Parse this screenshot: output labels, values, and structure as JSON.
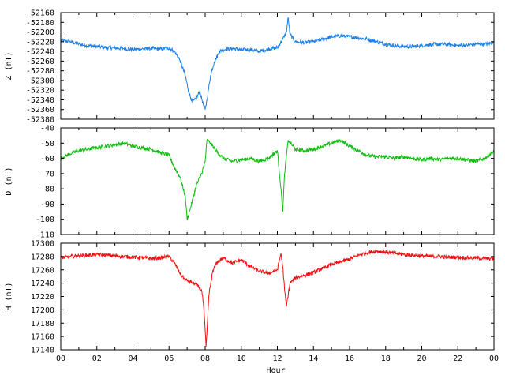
{
  "chart_data": [
    {
      "type": "line",
      "ylabel": "Z (nT)",
      "ylim": [
        -52380,
        -52160
      ],
      "yticks": [
        -52160,
        -52180,
        -52200,
        -52220,
        -52240,
        -52260,
        -52280,
        -52300,
        -52320,
        -52340,
        -52360,
        -52380
      ],
      "xlim": [
        0,
        24
      ],
      "color": "#1a7fe6",
      "series": [
        {
          "x": [
            0,
            0.5,
            1,
            1.5,
            2,
            2.5,
            3,
            3.5,
            4,
            4.5,
            5,
            5.5,
            6,
            6.3,
            6.6,
            6.9,
            7.1,
            7.3,
            7.5,
            7.7,
            7.9,
            8.0,
            8.1,
            8.3,
            8.5,
            8.8,
            9.0,
            9.5,
            10,
            10.5,
            11,
            11.5,
            12,
            12.3,
            12.5,
            12.6,
            12.7,
            13,
            13.5,
            14,
            14.5,
            15,
            15.5,
            16,
            16.5,
            17,
            17.5,
            18,
            18.5,
            19,
            19.5,
            20,
            20.5,
            21,
            21.5,
            22,
            22.5,
            23,
            23.5,
            24
          ],
          "values": [
            -52218,
            -52220,
            -52225,
            -52228,
            -52230,
            -52232,
            -52233,
            -52234,
            -52236,
            -52235,
            -52234,
            -52235,
            -52233,
            -52240,
            -52258,
            -52290,
            -52325,
            -52345,
            -52338,
            -52322,
            -52350,
            -52360,
            -52340,
            -52290,
            -52262,
            -52240,
            -52236,
            -52234,
            -52237,
            -52236,
            -52240,
            -52235,
            -52232,
            -52215,
            -52200,
            -52170,
            -52205,
            -52220,
            -52222,
            -52220,
            -52215,
            -52210,
            -52208,
            -52210,
            -52212,
            -52215,
            -52220,
            -52225,
            -52228,
            -52230,
            -52230,
            -52228,
            -52226,
            -52225,
            -52226,
            -52228,
            -52227,
            -52225,
            -52225,
            -52222
          ]
        }
      ]
    },
    {
      "type": "line",
      "ylabel": "D (nT)",
      "ylim": [
        -110,
        -40
      ],
      "yticks": [
        -40,
        -50,
        -60,
        -70,
        -80,
        -90,
        -100,
        -110
      ],
      "xlim": [
        0,
        24
      ],
      "color": "#11bb11",
      "series": [
        {
          "x": [
            0,
            0.5,
            1,
            1.5,
            2,
            2.5,
            3,
            3.5,
            4,
            4.5,
            5,
            5.5,
            6,
            6.3,
            6.6,
            6.9,
            7.0,
            7.2,
            7.5,
            7.8,
            8.0,
            8.1,
            8.3,
            8.6,
            9.0,
            9.5,
            10,
            10.5,
            11,
            11.5,
            12,
            12.2,
            12.3,
            12.4,
            12.6,
            13,
            13.5,
            14,
            14.5,
            15,
            15.5,
            16,
            16.5,
            17,
            17.5,
            18,
            18.5,
            19,
            19.5,
            20,
            20.5,
            21,
            21.5,
            22,
            22.5,
            23,
            23.5,
            24
          ],
          "values": [
            -60,
            -57,
            -55,
            -54,
            -53,
            -52,
            -51,
            -50,
            -52,
            -53,
            -54,
            -56,
            -58,
            -66,
            -72,
            -85,
            -100,
            -92,
            -78,
            -70,
            -62,
            -48,
            -50,
            -55,
            -60,
            -62,
            -61,
            -60,
            -62,
            -60,
            -55,
            -80,
            -95,
            -70,
            -48,
            -54,
            -55,
            -54,
            -52,
            -50,
            -48,
            -52,
            -55,
            -58,
            -59,
            -59,
            -60,
            -59,
            -60,
            -61,
            -60,
            -61,
            -60,
            -60,
            -61,
            -62,
            -60,
            -55
          ]
        }
      ]
    },
    {
      "type": "line",
      "ylabel": "H (nT)",
      "ylim": [
        17140,
        17300
      ],
      "yticks": [
        17300,
        17280,
        17260,
        17240,
        17220,
        17200,
        17180,
        17160,
        17140
      ],
      "xlim": [
        0,
        24
      ],
      "xticks": [
        "00",
        "02",
        "04",
        "06",
        "08",
        "10",
        "12",
        "14",
        "16",
        "18",
        "20",
        "22",
        "00"
      ],
      "xlabel": "Hour",
      "color": "#ee1111",
      "series": [
        {
          "x": [
            0,
            0.5,
            1,
            1.5,
            2,
            2.5,
            3,
            3.5,
            4,
            4.5,
            5,
            5.5,
            6,
            6.3,
            6.6,
            6.9,
            7.2,
            7.5,
            7.8,
            7.9,
            8.0,
            8.05,
            8.1,
            8.2,
            8.4,
            8.6,
            9,
            9.5,
            10,
            10.5,
            11,
            11.5,
            12,
            12.2,
            12.3,
            12.4,
            12.5,
            12.7,
            13,
            13.5,
            14,
            14.5,
            15,
            15.5,
            16,
            16.5,
            17,
            17.5,
            18,
            18.5,
            19,
            19.5,
            20,
            20.5,
            21,
            21.5,
            22,
            22.5,
            23,
            23.5,
            24
          ],
          "values": [
            17278,
            17280,
            17281,
            17282,
            17283,
            17282,
            17281,
            17280,
            17279,
            17278,
            17277,
            17278,
            17280,
            17270,
            17255,
            17245,
            17242,
            17238,
            17230,
            17210,
            17170,
            17145,
            17165,
            17220,
            17255,
            17270,
            17278,
            17270,
            17275,
            17265,
            17258,
            17255,
            17260,
            17285,
            17265,
            17230,
            17205,
            17240,
            17248,
            17252,
            17256,
            17262,
            17268,
            17272,
            17276,
            17282,
            17286,
            17288,
            17287,
            17285,
            17283,
            17282,
            17281,
            17280,
            17280,
            17279,
            17279,
            17278,
            17278,
            17277,
            17277
          ]
        }
      ]
    }
  ]
}
